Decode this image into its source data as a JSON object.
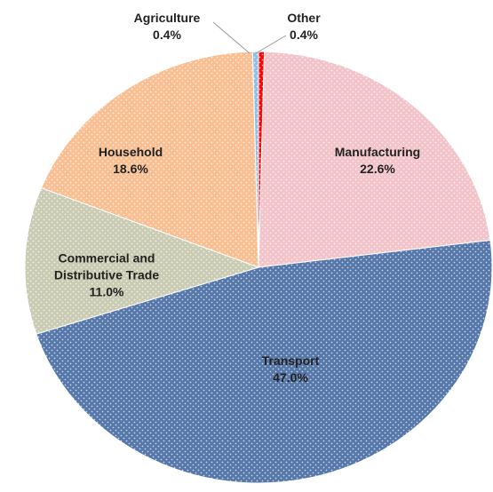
{
  "chart_data": {
    "type": "pie",
    "categories": [
      "Other",
      "Manufacturing",
      "Transport",
      "Commercial and Distributive Trade",
      "Household",
      "Agriculture"
    ],
    "values": [
      0.4,
      22.6,
      47.0,
      11.0,
      18.6,
      0.4
    ],
    "value_labels": [
      "0.4%",
      "22.6%",
      "47.0%",
      "11.0%",
      "18.6%",
      "0.4%"
    ],
    "colors": [
      "#ff0000",
      "#f2c4ca",
      "#5577aa",
      "#c9cbb2",
      "#f9be92",
      "#8fbfe6"
    ]
  }
}
